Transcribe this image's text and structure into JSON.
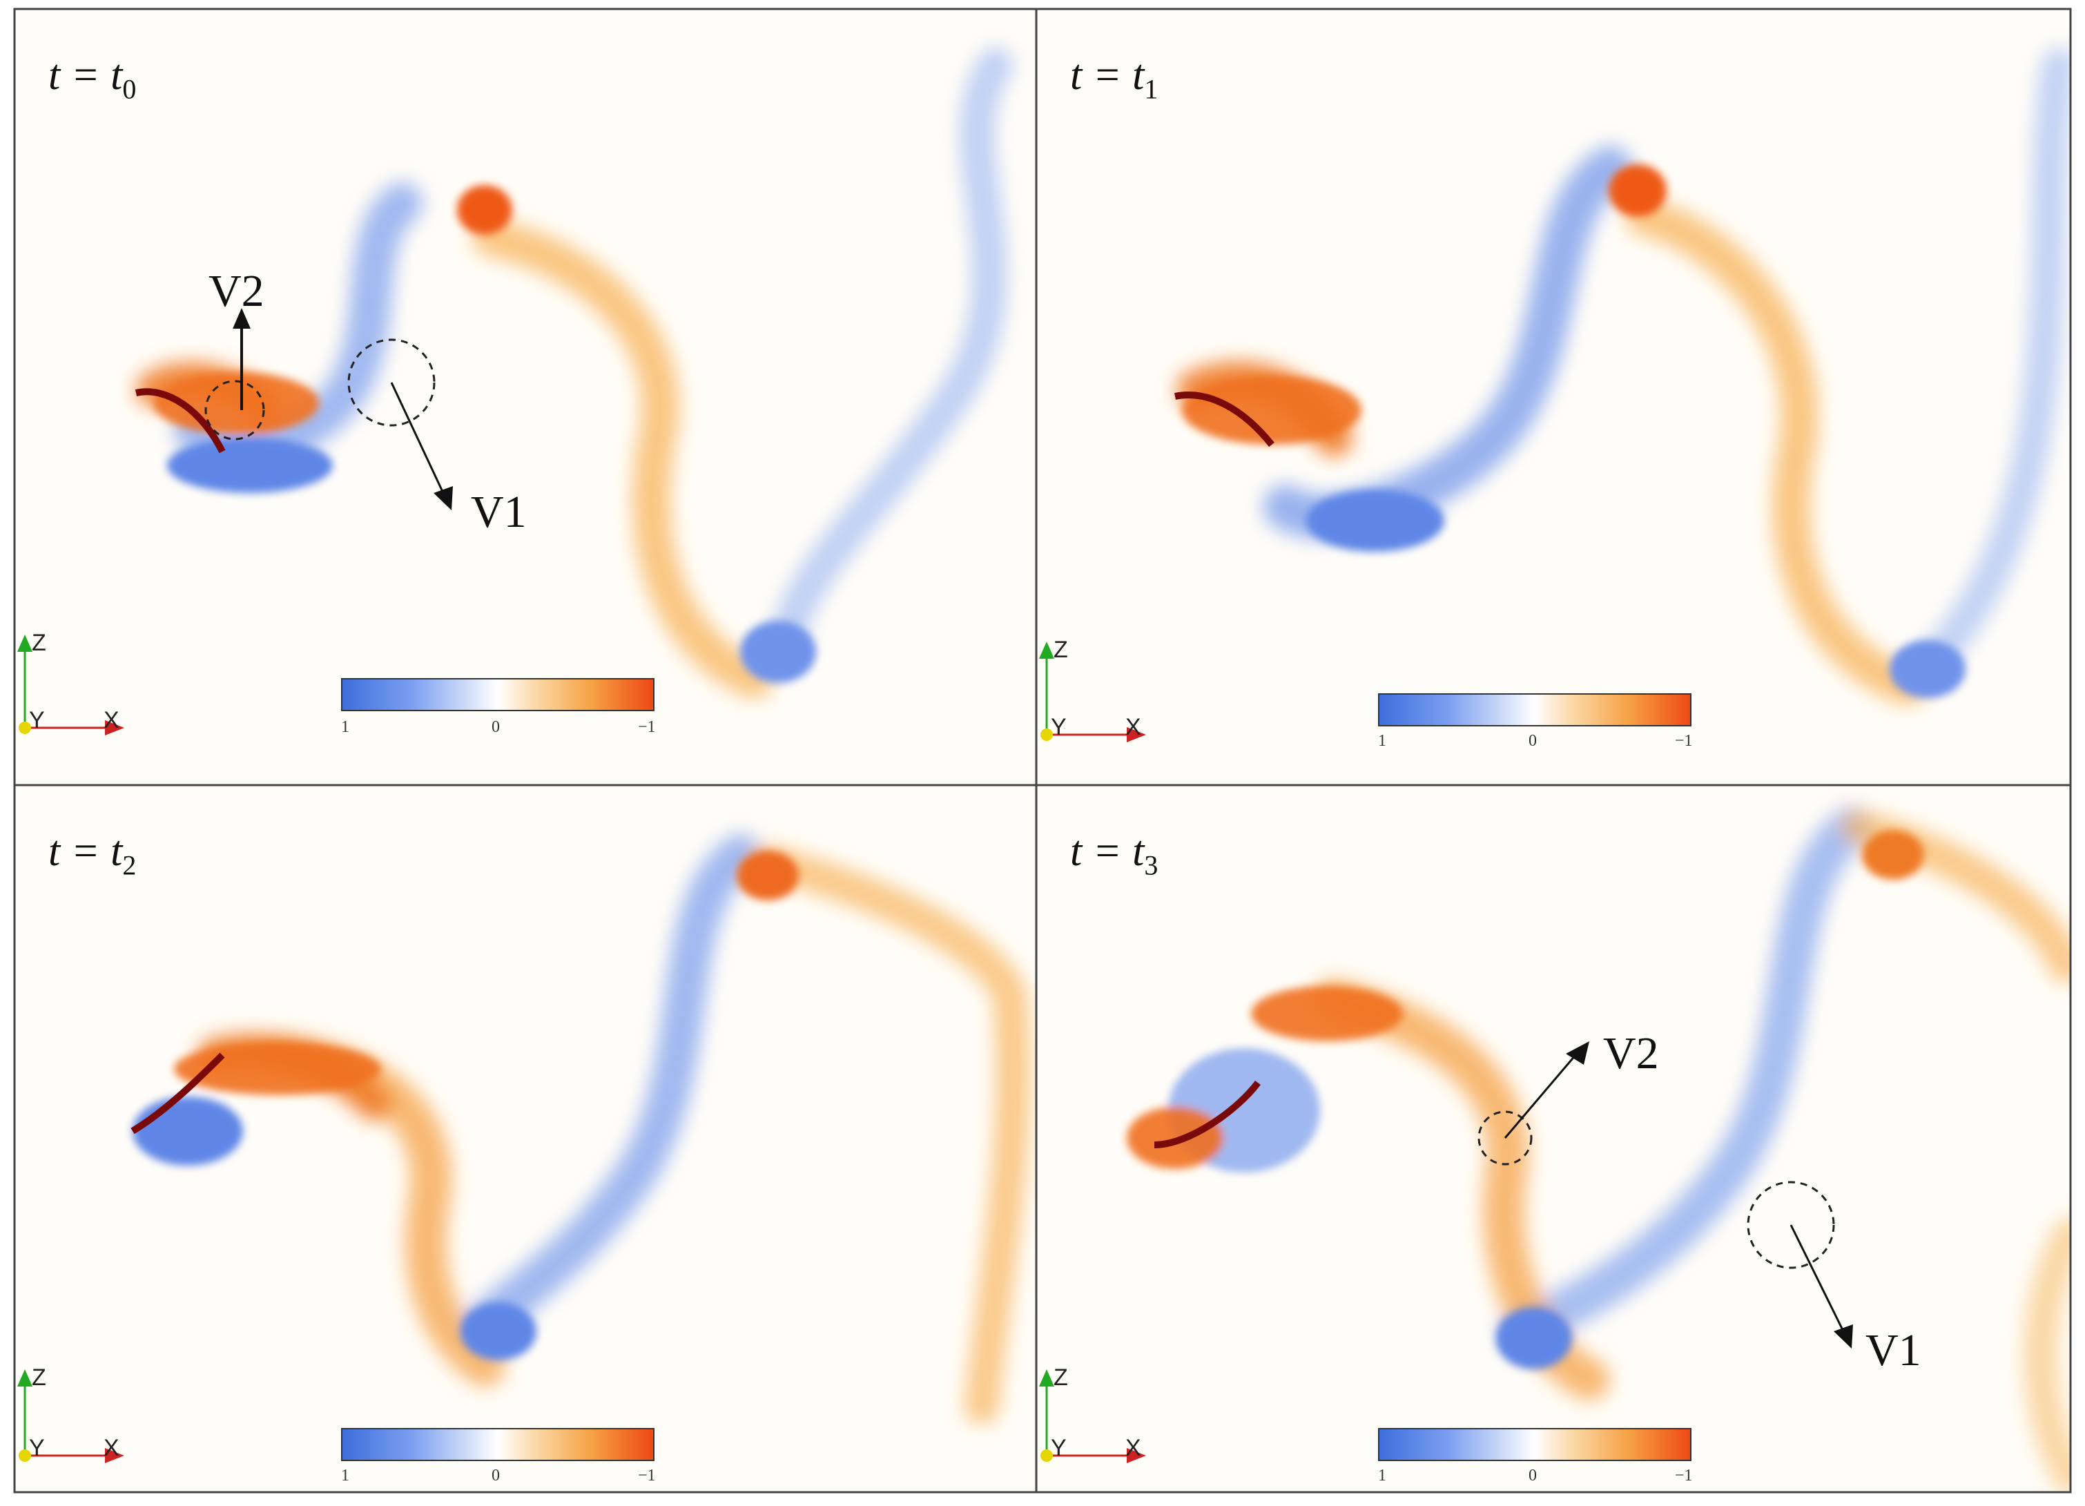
{
  "figure": {
    "panels": [
      {
        "time_var": "t",
        "time_sub": "0",
        "vortex_labels": [
          "V2",
          "V1"
        ],
        "colorbar_ticks": [
          "1",
          "0",
          "−1"
        ],
        "axes": {
          "vertical": "Z",
          "out": "Y",
          "horizontal": "X"
        }
      },
      {
        "time_var": "t",
        "time_sub": "1",
        "vortex_labels": [],
        "colorbar_ticks": [
          "1",
          "0",
          "−1"
        ],
        "axes": {
          "vertical": "Z",
          "out": "Y",
          "horizontal": "X"
        }
      },
      {
        "time_var": "t",
        "time_sub": "2",
        "vortex_labels": [],
        "colorbar_ticks": [
          "1",
          "0",
          "−1"
        ],
        "axes": {
          "vertical": "Z",
          "out": "Y",
          "horizontal": "X"
        }
      },
      {
        "time_var": "t",
        "time_sub": "3",
        "vortex_labels": [
          "V2",
          "V1"
        ],
        "colorbar_ticks": [
          "1",
          "0",
          "−1"
        ],
        "axes": {
          "vertical": "Z",
          "out": "Y",
          "horizontal": "X"
        }
      }
    ],
    "colors": {
      "positive_vorticity": "#3f6fdc",
      "negative_vorticity": "#ee4a14",
      "wing": "#7a0a0a",
      "axis_z": "#22aa22",
      "axis_x": "#cc2222",
      "axis_y": "#e6d600"
    }
  }
}
